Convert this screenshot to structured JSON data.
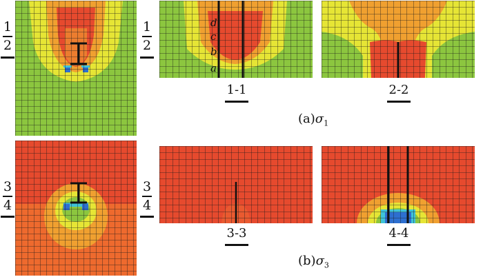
{
  "sigma1": {
    "caption_prefix": "(a)",
    "caption_symbol": "σ",
    "caption_sub": "1",
    "left_marker": {
      "num": "1",
      "den": "2"
    },
    "mid_marker": {
      "num": "1",
      "den": "2"
    },
    "section_11_label": "1-1",
    "section_22_label": "2-2",
    "points": [
      "d",
      "c",
      "b",
      "a"
    ]
  },
  "sigma3": {
    "caption_prefix": "(b)",
    "caption_symbol": "σ",
    "caption_sub": "3",
    "left_marker": {
      "num": "3",
      "den": "4"
    },
    "mid_marker": {
      "num": "3",
      "den": "4"
    },
    "section_33_label": "3-3",
    "section_44_label": "4-4"
  },
  "colors": {
    "green": "#8cc63f",
    "yellow": "#e6e535",
    "orange": "#f0a030",
    "red": "#e64a2e",
    "deep_red": "#d9302a",
    "blue": "#2d6fd0",
    "cyan": "#3fc3d8",
    "mesh": "#1a1a1a"
  }
}
